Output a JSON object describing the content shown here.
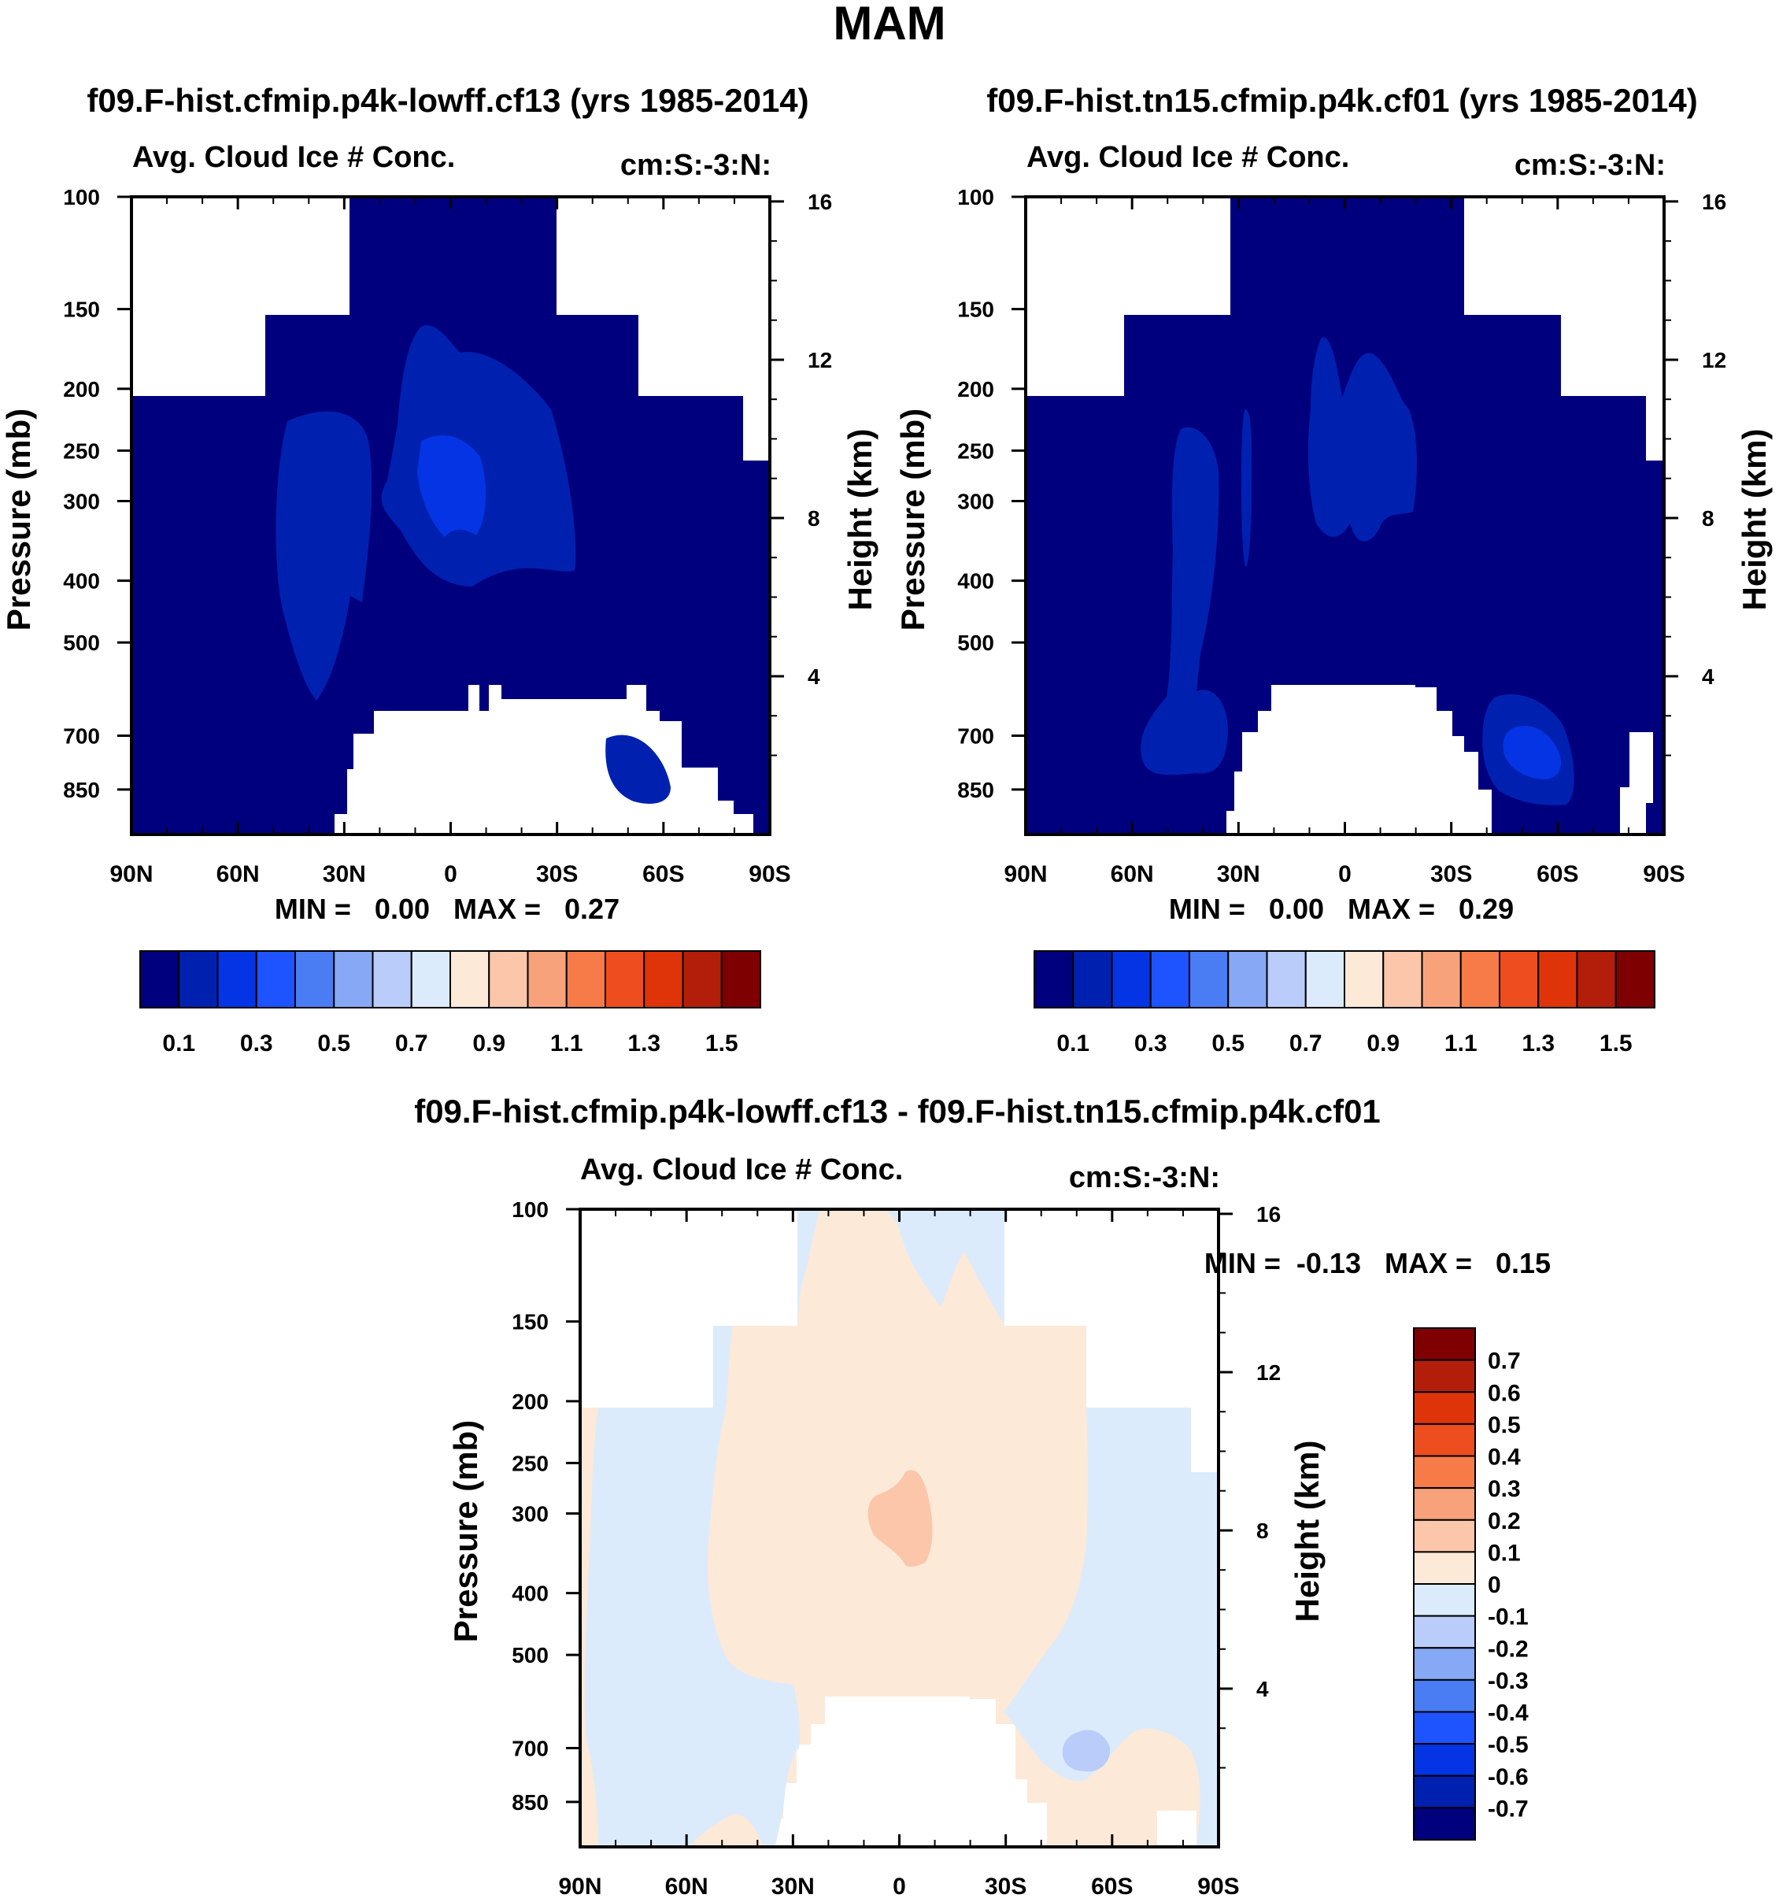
{
  "page_title": "MAM",
  "chart_data": [
    {
      "id": "left",
      "type": "heatmap",
      "title": "f09.F-hist.cfmip.p4k-lowff.cf13 (yrs 1985-2014)",
      "subtitle_left": "Avg. Cloud Ice # Conc.",
      "subtitle_right": "cm:S:-3:N:",
      "ylabel": "Pressure (mb)",
      "ylabel_right": "Height (km)",
      "x_ticks": [
        "90N",
        "60N",
        "30N",
        "0",
        "30S",
        "60S",
        "90S"
      ],
      "y_ticks": [
        "100",
        "150",
        "200",
        "250",
        "300",
        "400",
        "500",
        "700",
        "850"
      ],
      "y_ticks_right": [
        "16",
        "12",
        "8",
        "4"
      ],
      "ylim": [
        100,
        1000
      ],
      "y_scale": "log",
      "stats": "MIN =   0.00   MAX =   0.27",
      "colorbar": {
        "orientation": "horizontal",
        "labels": [
          "0.1",
          "0.3",
          "0.5",
          "0.7",
          "0.9",
          "1.1",
          "1.3",
          "1.5"
        ]
      }
    },
    {
      "id": "right",
      "type": "heatmap",
      "title": "f09.F-hist.tn15.cfmip.p4k.cf01 (yrs 1985-2014)",
      "subtitle_left": "Avg. Cloud Ice # Conc.",
      "subtitle_right": "cm:S:-3:N:",
      "ylabel": "Pressure (mb)",
      "ylabel_right": "Height (km)",
      "x_ticks": [
        "90N",
        "60N",
        "30N",
        "0",
        "30S",
        "60S",
        "90S"
      ],
      "y_ticks": [
        "100",
        "150",
        "200",
        "250",
        "300",
        "400",
        "500",
        "700",
        "850"
      ],
      "y_ticks_right": [
        "16",
        "12",
        "8",
        "4"
      ],
      "ylim": [
        100,
        1000
      ],
      "y_scale": "log",
      "stats": "MIN =   0.00   MAX =   0.29",
      "colorbar": {
        "orientation": "horizontal",
        "labels": [
          "0.1",
          "0.3",
          "0.5",
          "0.7",
          "0.9",
          "1.1",
          "1.3",
          "1.5"
        ]
      }
    },
    {
      "id": "diff",
      "type": "heatmap",
      "title": "f09.F-hist.cfmip.p4k-lowff.cf13 - f09.F-hist.tn15.cfmip.p4k.cf01",
      "subtitle_left": "Avg. Cloud Ice # Conc.",
      "subtitle_right": "cm:S:-3:N:",
      "ylabel": "Pressure (mb)",
      "ylabel_right": "Height (km)",
      "x_ticks": [
        "90N",
        "60N",
        "30N",
        "0",
        "30S",
        "60S",
        "90S"
      ],
      "y_ticks": [
        "100",
        "150",
        "200",
        "250",
        "300",
        "400",
        "500",
        "700",
        "850"
      ],
      "y_ticks_right": [
        "16",
        "12",
        "8",
        "4"
      ],
      "ylim": [
        100,
        1000
      ],
      "y_scale": "log",
      "stats": "MIN =  -0.13   MAX =   0.15",
      "colorbar": {
        "orientation": "vertical",
        "labels": [
          "0.7",
          "0.6",
          "0.5",
          "0.4",
          "0.3",
          "0.2",
          "0.1",
          "0",
          "-0.1",
          "-0.2",
          "-0.3",
          "-0.4",
          "-0.5",
          "-0.6",
          "-0.7"
        ]
      }
    }
  ],
  "colors": {
    "scale": [
      "#00007f",
      "#0021b0",
      "#0434e3",
      "#1e54ff",
      "#4a7cf4",
      "#86a8f5",
      "#b9ccfa",
      "#dcebfb",
      "#fde9d8",
      "#fbc6a9",
      "#f8a27b",
      "#f67b48",
      "#ee4d1f",
      "#df3409",
      "#b31e0a",
      "#7f0000"
    ]
  }
}
